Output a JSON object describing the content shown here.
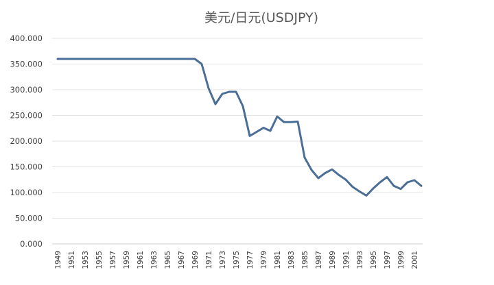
{
  "chart_data": {
    "type": "line",
    "title": "美元/日元(USDJPY)",
    "xlabel": "",
    "ylabel": "",
    "ylim": [
      0,
      400
    ],
    "yticks": [
      "0.000",
      "50.000",
      "100.000",
      "150.000",
      "200.000",
      "250.000",
      "300.000",
      "350.000",
      "400.000"
    ],
    "xticks": [
      "1949",
      "1951",
      "1953",
      "1955",
      "1957",
      "1959",
      "1961",
      "1963",
      "1965",
      "1967",
      "1969",
      "1971",
      "1973",
      "1975",
      "1977",
      "1979",
      "1981",
      "1983",
      "1985",
      "1987",
      "1989",
      "1991",
      "1993",
      "1995",
      "1997",
      "1999",
      "2001"
    ],
    "grid": true,
    "legend": "none",
    "line_color": "#4a6e96",
    "series": [
      {
        "x": [
          1949,
          1950,
          1951,
          1952,
          1953,
          1954,
          1955,
          1956,
          1957,
          1958,
          1959,
          1960,
          1961,
          1962,
          1963,
          1964,
          1965,
          1966,
          1967,
          1968,
          1969,
          1970,
          1971,
          1972,
          1973,
          1974,
          1975,
          1976,
          1977,
          1978,
          1979,
          1980,
          1981,
          1982,
          1983,
          1984,
          1985,
          1986,
          1987,
          1988,
          1989,
          1990,
          1991,
          1992,
          1993,
          1994,
          1995,
          1996,
          1997,
          1998,
          1999,
          2000,
          2001,
          2002
        ],
        "values": [
          360,
          360,
          360,
          360,
          360,
          360,
          360,
          360,
          360,
          360,
          360,
          360,
          360,
          360,
          360,
          360,
          360,
          360,
          360,
          360,
          360,
          350,
          303,
          272,
          292,
          296,
          296,
          268,
          210,
          218,
          226,
          220,
          248,
          237,
          237,
          238,
          168,
          144,
          128,
          138,
          145,
          134,
          125,
          111,
          102,
          94,
          108,
          120,
          130,
          113,
          107,
          120,
          124,
          113
        ]
      }
    ]
  }
}
